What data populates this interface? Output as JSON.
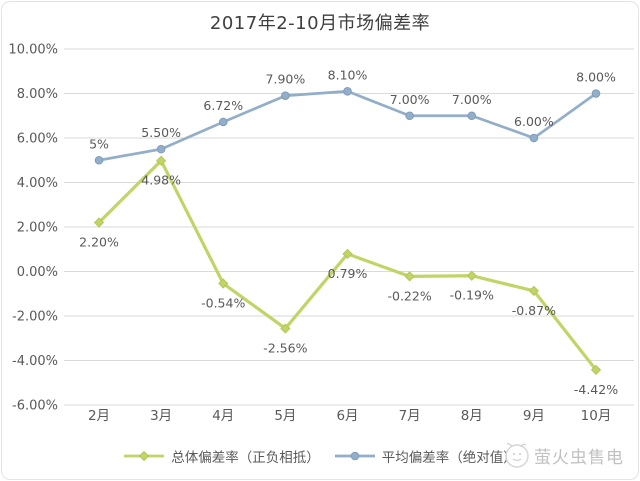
{
  "card": {
    "background": "#ffffff",
    "border_color": "#e4e4e4"
  },
  "chart_data": {
    "type": "line",
    "title": "2017年2-10月市场偏差率",
    "categories": [
      "2月",
      "3月",
      "4月",
      "5月",
      "6月",
      "7月",
      "8月",
      "9月",
      "10月"
    ],
    "series": [
      {
        "name": "总体偏差率（正负相抵）",
        "color": "#c3d467",
        "marker_color": "#b3c654",
        "marker": "diamond",
        "label_position": "below",
        "values": [
          2.2,
          4.98,
          -0.54,
          -2.56,
          0.79,
          -0.22,
          -0.19,
          -0.87,
          -4.42
        ],
        "labels": [
          "2.20%",
          "4.98%",
          "-0.54%",
          "-2.56%",
          "0.79%",
          "-0.22%",
          "-0.19%",
          "-0.87%",
          "-4.42%"
        ]
      },
      {
        "name": "平均偏差率（绝对值）",
        "color": "#92aec9",
        "marker_color": "#7e9cbc",
        "marker": "circle",
        "label_position": "above",
        "values": [
          5,
          5.5,
          6.72,
          7.9,
          8.1,
          7,
          7,
          6,
          8
        ],
        "labels": [
          "5%",
          "5.50%",
          "6.72%",
          "7.90%",
          "8.10%",
          "7.00%",
          "7.00%",
          "6.00%",
          "8.00%"
        ]
      }
    ],
    "y_axis": {
      "min": -6,
      "max": 10,
      "step": 2,
      "tick_labels": [
        "10.00%",
        "8.00%",
        "6.00%",
        "4.00%",
        "2.00%",
        "0.00%",
        "-2.00%",
        "-4.00%",
        "-6.00%"
      ]
    },
    "x_axis": {
      "label": ""
    },
    "grid": true,
    "legend_position": "bottom",
    "styles": {
      "grid_color": "#dadada",
      "tick_color": "#595959",
      "data_label_color": "#595959",
      "title_color": "#3f3f3f"
    }
  },
  "watermark": {
    "text": "萤火虫售电",
    "color": "#c2c1c1"
  }
}
